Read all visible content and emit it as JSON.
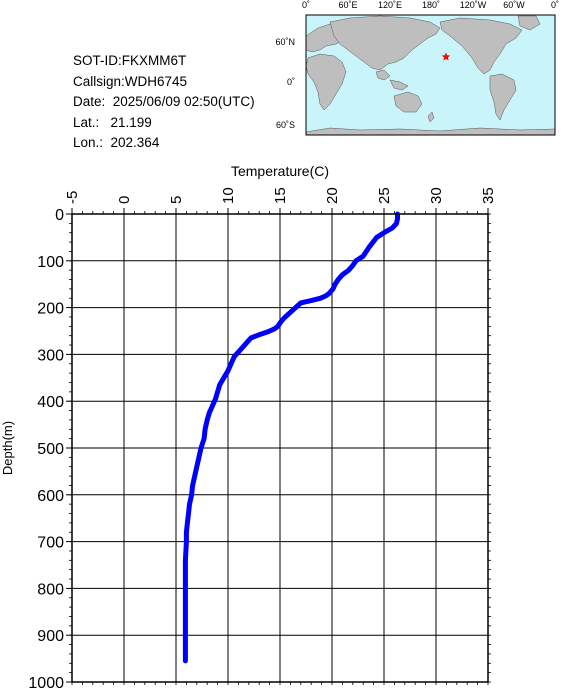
{
  "info": {
    "sot_id": "SOT-ID:FKXMM6T",
    "callsign": "Callsign:WDH6745",
    "date": "Date:  2025/06/09 02:50(UTC)",
    "lat": "Lat.:   21.199",
    "lon": "Lon.:  202.364"
  },
  "map": {
    "lon_labels": [
      "0˚",
      "60˚E",
      "120˚E",
      "180˚",
      "120˚W",
      "60˚W",
      "0˚"
    ],
    "lat_labels": [
      "60˚N",
      "0˚",
      "60˚S"
    ],
    "ocean_color": "#c8f4fa",
    "land_color": "#bebebe",
    "marker_color": "#ff0000",
    "marker": {
      "lon": 202.364,
      "lat": 21.199
    }
  },
  "chart_data": {
    "type": "line",
    "title": "",
    "xlabel": "Temperature(C)",
    "ylabel": "Depth(m)",
    "xlim": [
      -5,
      35
    ],
    "ylim": [
      1000,
      0
    ],
    "xticks": [
      "-5",
      "0",
      "5",
      "10",
      "15",
      "20",
      "25",
      "30",
      "35"
    ],
    "yticks": [
      "0",
      "100",
      "200",
      "300",
      "400",
      "500",
      "600",
      "700",
      "800",
      "900",
      "1000"
    ],
    "grid": true,
    "line_color": "#0000ff",
    "series": [
      {
        "x": [
          26.3,
          26.3,
          26.2,
          25.8,
          25.0,
          24.3,
          23.6,
          23.0,
          22.3,
          22.0,
          21.6,
          21.0,
          20.6,
          20.3,
          20.1,
          19.7,
          19.4,
          18.9,
          18.0,
          17.0,
          16.5,
          16.0,
          15.5,
          15.1,
          14.8,
          14.5,
          14.2,
          13.8,
          13.0,
          12.2,
          11.8,
          11.4,
          11.0,
          10.6,
          10.3,
          10.0,
          9.6,
          9.2,
          9.0,
          8.8,
          8.5,
          8.2,
          8.0,
          7.8,
          7.7,
          7.4,
          7.2,
          7.0,
          6.8,
          6.6,
          6.5,
          6.3,
          6.2,
          6.1,
          6.0,
          6.0,
          5.9,
          5.9,
          5.9,
          5.9,
          5.9,
          5.9
        ],
        "y": [
          0,
          10,
          20,
          30,
          40,
          50,
          70,
          90,
          100,
          110,
          120,
          130,
          140,
          150,
          160,
          170,
          175,
          180,
          185,
          190,
          200,
          210,
          220,
          230,
          240,
          245,
          248,
          252,
          258,
          265,
          275,
          285,
          295,
          305,
          320,
          335,
          350,
          365,
          380,
          395,
          410,
          425,
          440,
          460,
          480,
          500,
          520,
          540,
          560,
          580,
          600,
          620,
          640,
          660,
          680,
          700,
          740,
          780,
          820,
          860,
          900,
          955
        ]
      }
    ]
  }
}
